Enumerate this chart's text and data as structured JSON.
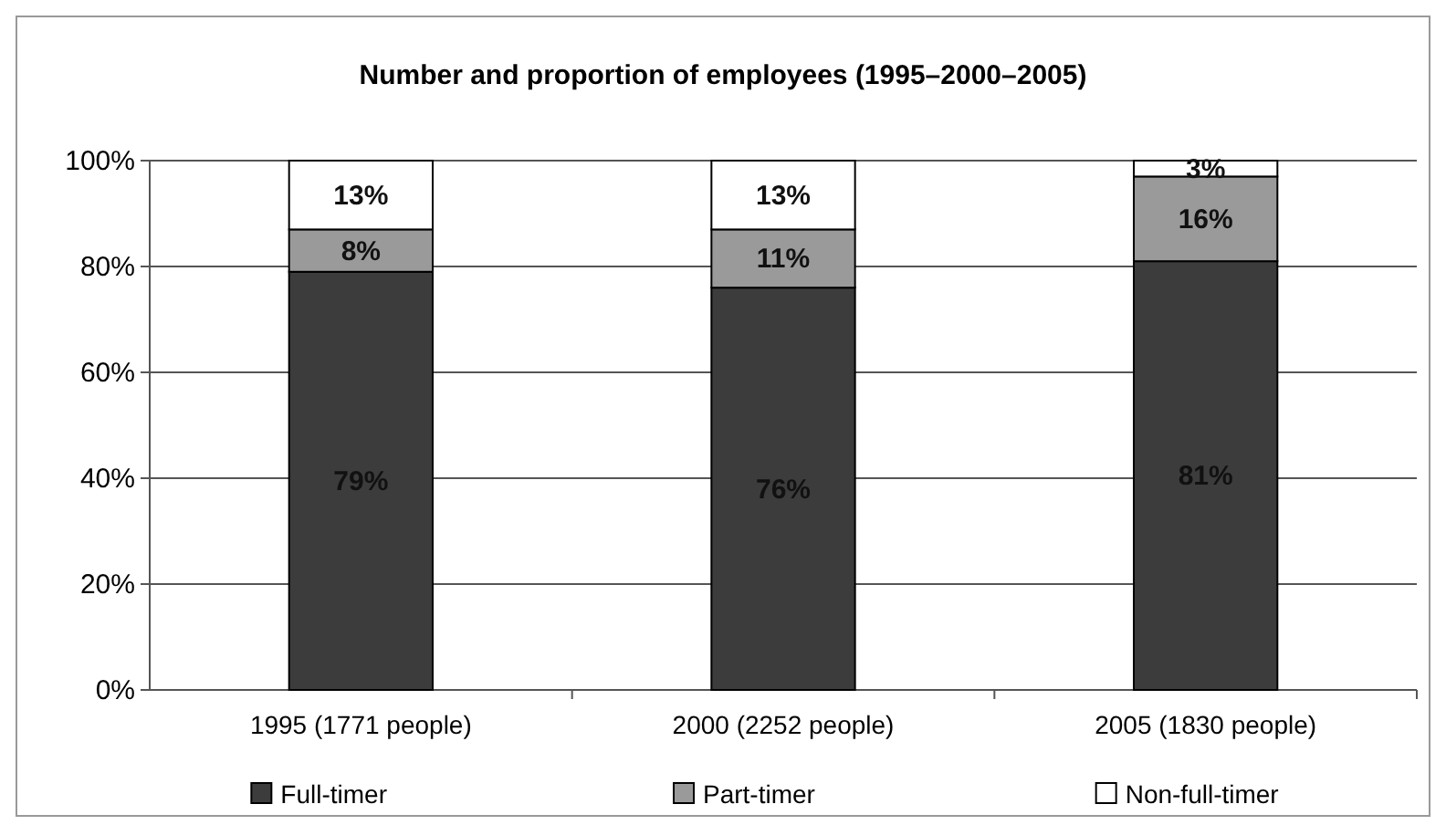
{
  "chart_data": {
    "type": "bar",
    "title": "Number and proportion of employees (1995–2000–2005)",
    "categories": [
      "1995 (1771 people)",
      "2000 (2252 people)",
      "2005 (1830 people)"
    ],
    "stacked": true,
    "series": [
      {
        "name": "Full-timer",
        "color": "#3c3c3c",
        "values": [
          79,
          76,
          81
        ],
        "value_labels": [
          "79%",
          "76%",
          "81%"
        ]
      },
      {
        "name": "Part-timer",
        "color": "#9a9a9a",
        "values": [
          8,
          11,
          16
        ],
        "value_labels": [
          "8%",
          "11%",
          "16%"
        ]
      },
      {
        "name": "Non-full-timer",
        "color": "#ffffff",
        "values": [
          13,
          13,
          3
        ],
        "value_labels": [
          "13%",
          "13%",
          "3%"
        ]
      }
    ],
    "ylim": [
      0,
      100
    ],
    "yticks": [
      {
        "value": 0,
        "label": "0%"
      },
      {
        "value": 20,
        "label": "20%"
      },
      {
        "value": 40,
        "label": "40%"
      },
      {
        "value": 60,
        "label": "60%"
      },
      {
        "value": 80,
        "label": "80%"
      },
      {
        "value": 100,
        "label": "100%"
      }
    ],
    "grid": "y",
    "legend": "bottom"
  }
}
